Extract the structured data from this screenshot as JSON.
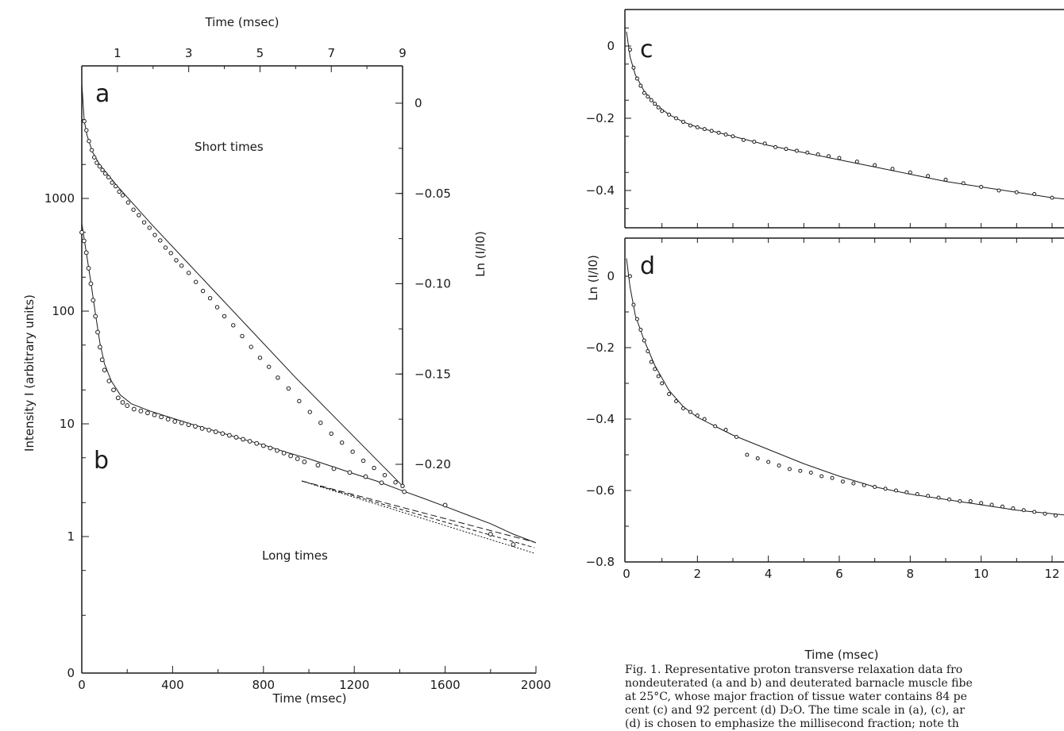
{
  "chart_data": [
    {
      "panel": "a/b",
      "type": "scatter",
      "xlabel_top": "Time (msec)",
      "xlabel_bottom": "Time (msec)",
      "ylabel_left": "Intensity I (arbitrary units)",
      "ylabel_right": "Ln (I/I0)",
      "top_axis": {
        "range": [
          0,
          9
        ],
        "ticks": [
          1,
          3,
          5,
          7,
          9
        ],
        "tick_labels": [
          "1",
          "3",
          "5",
          "7",
          "9"
        ]
      },
      "bottom_axis": {
        "range": [
          0,
          2000
        ],
        "ticks": [
          0,
          400,
          800,
          1200,
          1600,
          2000
        ],
        "tick_labels": [
          "0",
          "400",
          "800",
          "1200",
          "1600",
          "2000"
        ]
      },
      "left_axis": {
        "scale": "log",
        "tick_labels": [
          "0",
          "1",
          "10",
          "100",
          "1000"
        ]
      },
      "right_axis": {
        "range": [
          -0.23,
          0.02
        ],
        "ticks": [
          0,
          -0.05,
          -0.1,
          -0.15,
          -0.2
        ],
        "tick_labels": [
          "0",
          "−0.05",
          "−0.10",
          "−0.15",
          "−0.20"
        ]
      },
      "labels": {
        "a": "a",
        "b": "b",
        "short": "Short times",
        "long": "Long times"
      },
      "series": [
        {
          "panel_label": "a",
          "x_axis": "top",
          "y_axis": "right",
          "points": [
            [
              0.07,
              -0.01
            ],
            [
              0.13,
              -0.015
            ],
            [
              0.2,
              -0.021
            ],
            [
              0.28,
              -0.026
            ],
            [
              0.35,
              -0.03
            ],
            [
              0.42,
              -0.033
            ],
            [
              0.5,
              -0.035
            ],
            [
              0.58,
              -0.037
            ],
            [
              0.66,
              -0.039
            ],
            [
              0.75,
              -0.041
            ],
            [
              0.85,
              -0.044
            ],
            [
              0.95,
              -0.046
            ],
            [
              1.05,
              -0.049
            ],
            [
              1.15,
              -0.051
            ],
            [
              1.3,
              -0.055
            ],
            [
              1.45,
              -0.059
            ],
            [
              1.6,
              -0.062
            ],
            [
              1.75,
              -0.066
            ],
            [
              1.9,
              -0.069
            ],
            [
              2.05,
              -0.073
            ],
            [
              2.2,
              -0.076
            ],
            [
              2.35,
              -0.08
            ],
            [
              2.5,
              -0.083
            ],
            [
              2.65,
              -0.087
            ],
            [
              2.8,
              -0.09
            ],
            [
              3.0,
              -0.094
            ],
            [
              3.2,
              -0.099
            ],
            [
              3.4,
              -0.104
            ],
            [
              3.6,
              -0.108
            ],
            [
              3.8,
              -0.113
            ],
            [
              4.0,
              -0.118
            ],
            [
              4.25,
              -0.123
            ],
            [
              4.5,
              -0.129
            ],
            [
              4.75,
              -0.135
            ],
            [
              5.0,
              -0.141
            ],
            [
              5.25,
              -0.146
            ],
            [
              5.5,
              -0.152
            ],
            [
              5.8,
              -0.158
            ],
            [
              6.1,
              -0.165
            ],
            [
              6.4,
              -0.171
            ],
            [
              6.7,
              -0.177
            ],
            [
              7.0,
              -0.183
            ],
            [
              7.3,
              -0.188
            ],
            [
              7.6,
              -0.193
            ],
            [
              7.9,
              -0.198
            ],
            [
              8.2,
              -0.202
            ],
            [
              8.5,
              -0.206
            ],
            [
              8.8,
              -0.21
            ],
            [
              9.0,
              -0.212
            ]
          ],
          "fit": [
            [
              0,
              0.011
            ],
            [
              0.07,
              -0.01
            ],
            [
              0.15,
              -0.018
            ],
            [
              0.3,
              -0.027
            ],
            [
              0.5,
              -0.034
            ],
            [
              0.75,
              -0.04
            ],
            [
              1.0,
              -0.046
            ],
            [
              1.5,
              -0.057
            ],
            [
              2.0,
              -0.068
            ],
            [
              3.0,
              -0.089
            ],
            [
              4.0,
              -0.11
            ],
            [
              5.0,
              -0.131
            ],
            [
              6.0,
              -0.152
            ],
            [
              7.0,
              -0.172
            ],
            [
              8.0,
              -0.192
            ],
            [
              9.0,
              -0.212
            ]
          ]
        },
        {
          "panel_label": "b",
          "x_axis": "bottom",
          "y_axis": "left",
          "points": [
            [
              0,
              500
            ],
            [
              10,
              420
            ],
            [
              20,
              330
            ],
            [
              30,
              240
            ],
            [
              40,
              175
            ],
            [
              50,
              125
            ],
            [
              60,
              90
            ],
            [
              70,
              65
            ],
            [
              80,
              48
            ],
            [
              90,
              37
            ],
            [
              100,
              30
            ],
            [
              120,
              24
            ],
            [
              140,
              20
            ],
            [
              160,
              17
            ],
            [
              180,
              15.5
            ],
            [
              200,
              14.5
            ],
            [
              230,
              13.5
            ],
            [
              260,
              13
            ],
            [
              290,
              12.5
            ],
            [
              320,
              12
            ],
            [
              350,
              11.5
            ],
            [
              380,
              11
            ],
            [
              410,
              10.5
            ],
            [
              440,
              10.2
            ],
            [
              470,
              9.8
            ],
            [
              500,
              9.5
            ],
            [
              530,
              9.1
            ],
            [
              560,
              8.8
            ],
            [
              590,
              8.5
            ],
            [
              620,
              8.2
            ],
            [
              650,
              7.9
            ],
            [
              680,
              7.6
            ],
            [
              710,
              7.3
            ],
            [
              740,
              7.0
            ],
            [
              770,
              6.7
            ],
            [
              800,
              6.4
            ],
            [
              830,
              6.1
            ],
            [
              860,
              5.8
            ],
            [
              890,
              5.5
            ],
            [
              920,
              5.2
            ],
            [
              950,
              4.9
            ],
            [
              980,
              4.6
            ],
            [
              1040,
              4.3
            ],
            [
              1110,
              4.0
            ],
            [
              1180,
              3.7
            ],
            [
              1250,
              3.4
            ],
            [
              1320,
              3.0
            ],
            [
              1420,
              2.5
            ],
            [
              1600,
              1.9
            ],
            [
              1800,
              1.05
            ],
            [
              1900,
              0.85
            ]
          ],
          "fit": [
            [
              0,
              600
            ],
            [
              20,
              330
            ],
            [
              40,
              180
            ],
            [
              60,
              95
            ],
            [
              80,
              52
            ],
            [
              100,
              34
            ],
            [
              130,
              24
            ],
            [
              170,
              18
            ],
            [
              220,
              15
            ],
            [
              300,
              13
            ],
            [
              400,
              11.2
            ],
            [
              500,
              9.7
            ],
            [
              600,
              8.5
            ],
            [
              700,
              7.4
            ],
            [
              800,
              6.5
            ],
            [
              900,
              5.6
            ],
            [
              1000,
              4.9
            ],
            [
              1100,
              4.2
            ],
            [
              1200,
              3.6
            ],
            [
              1300,
              3.1
            ],
            [
              1400,
              2.6
            ],
            [
              1500,
              2.2
            ],
            [
              1600,
              1.85
            ],
            [
              1700,
              1.55
            ],
            [
              1800,
              1.3
            ],
            [
              1900,
              1.05
            ],
            [
              2000,
              0.88
            ]
          ]
        }
      ]
    },
    {
      "panel": "c",
      "type": "scatter",
      "label": "c",
      "ylabel": "Ln (I/I0)",
      "y_ticks": [
        0,
        -0.2,
        -0.4
      ],
      "y_tick_labels": [
        "0",
        "−0.2",
        "−0.4"
      ],
      "ylim": [
        -0.47,
        0.08
      ],
      "xlim": [
        0,
        12.5
      ],
      "points": [
        [
          0.1,
          -0.01
        ],
        [
          0.2,
          -0.06
        ],
        [
          0.3,
          -0.09
        ],
        [
          0.4,
          -0.11
        ],
        [
          0.5,
          -0.13
        ],
        [
          0.6,
          -0.14
        ],
        [
          0.7,
          -0.15
        ],
        [
          0.8,
          -0.16
        ],
        [
          0.9,
          -0.17
        ],
        [
          1.0,
          -0.18
        ],
        [
          1.2,
          -0.19
        ],
        [
          1.4,
          -0.2
        ],
        [
          1.6,
          -0.21
        ],
        [
          1.8,
          -0.22
        ],
        [
          2.0,
          -0.225
        ],
        [
          2.2,
          -0.23
        ],
        [
          2.4,
          -0.235
        ],
        [
          2.6,
          -0.24
        ],
        [
          2.8,
          -0.245
        ],
        [
          3.0,
          -0.25
        ],
        [
          3.3,
          -0.26
        ],
        [
          3.6,
          -0.265
        ],
        [
          3.9,
          -0.27
        ],
        [
          4.2,
          -0.28
        ],
        [
          4.5,
          -0.285
        ],
        [
          4.8,
          -0.29
        ],
        [
          5.1,
          -0.295
        ],
        [
          5.4,
          -0.3
        ],
        [
          5.7,
          -0.305
        ],
        [
          6.0,
          -0.31
        ],
        [
          6.5,
          -0.32
        ],
        [
          7.0,
          -0.33
        ],
        [
          7.5,
          -0.34
        ],
        [
          8.0,
          -0.35
        ],
        [
          8.5,
          -0.36
        ],
        [
          9.0,
          -0.37
        ],
        [
          9.5,
          -0.38
        ],
        [
          10.0,
          -0.39
        ],
        [
          10.5,
          -0.4
        ],
        [
          11.0,
          -0.405
        ],
        [
          11.5,
          -0.41
        ],
        [
          12.0,
          -0.42
        ]
      ],
      "fit": [
        [
          0,
          0.04
        ],
        [
          0.1,
          -0.03
        ],
        [
          0.25,
          -0.08
        ],
        [
          0.5,
          -0.125
        ],
        [
          0.8,
          -0.16
        ],
        [
          1.2,
          -0.19
        ],
        [
          1.6,
          -0.21
        ],
        [
          2.0,
          -0.225
        ],
        [
          3.0,
          -0.25
        ],
        [
          4.0,
          -0.275
        ],
        [
          5.0,
          -0.295
        ],
        [
          6.0,
          -0.315
        ],
        [
          7.0,
          -0.335
        ],
        [
          8.0,
          -0.355
        ],
        [
          9.0,
          -0.375
        ],
        [
          10.0,
          -0.39
        ],
        [
          11.0,
          -0.405
        ],
        [
          12.0,
          -0.42
        ],
        [
          12.5,
          -0.425
        ]
      ]
    },
    {
      "panel": "d",
      "type": "scatter",
      "label": "d",
      "ylabel": "Ln (I/I0)",
      "xlabel": "Time (msec)",
      "x_ticks": [
        0,
        2,
        4,
        6,
        8,
        10,
        12
      ],
      "x_tick_labels": [
        "0",
        "2",
        "4",
        "6",
        "8",
        "10",
        "12"
      ],
      "y_ticks": [
        0,
        -0.2,
        -0.4,
        -0.6,
        -0.8
      ],
      "y_tick_labels": [
        "0",
        "−0.2",
        "−0.4",
        "−0.6",
        "−0.8"
      ],
      "ylim": [
        -0.8,
        0.08
      ],
      "xlim": [
        0,
        12.5
      ],
      "points": [
        [
          0.1,
          0.0
        ],
        [
          0.2,
          -0.08
        ],
        [
          0.3,
          -0.12
        ],
        [
          0.4,
          -0.15
        ],
        [
          0.5,
          -0.18
        ],
        [
          0.6,
          -0.21
        ],
        [
          0.7,
          -0.24
        ],
        [
          0.8,
          -0.26
        ],
        [
          0.9,
          -0.28
        ],
        [
          1.0,
          -0.3
        ],
        [
          1.2,
          -0.33
        ],
        [
          1.4,
          -0.35
        ],
        [
          1.6,
          -0.37
        ],
        [
          1.8,
          -0.38
        ],
        [
          2.0,
          -0.39
        ],
        [
          2.2,
          -0.4
        ],
        [
          2.5,
          -0.42
        ],
        [
          2.8,
          -0.43
        ],
        [
          3.1,
          -0.45
        ],
        [
          3.4,
          -0.5
        ],
        [
          3.7,
          -0.51
        ],
        [
          4.0,
          -0.52
        ],
        [
          4.3,
          -0.53
        ],
        [
          4.6,
          -0.54
        ],
        [
          4.9,
          -0.545
        ],
        [
          5.2,
          -0.55
        ],
        [
          5.5,
          -0.56
        ],
        [
          5.8,
          -0.565
        ],
        [
          6.1,
          -0.575
        ],
        [
          6.4,
          -0.58
        ],
        [
          6.7,
          -0.585
        ],
        [
          7.0,
          -0.59
        ],
        [
          7.3,
          -0.595
        ],
        [
          7.6,
          -0.6
        ],
        [
          7.9,
          -0.605
        ],
        [
          8.2,
          -0.61
        ],
        [
          8.5,
          -0.615
        ],
        [
          8.8,
          -0.62
        ],
        [
          9.1,
          -0.625
        ],
        [
          9.4,
          -0.63
        ],
        [
          9.7,
          -0.63
        ],
        [
          10.0,
          -0.635
        ],
        [
          10.3,
          -0.64
        ],
        [
          10.6,
          -0.645
        ],
        [
          10.9,
          -0.65
        ],
        [
          11.2,
          -0.655
        ],
        [
          11.5,
          -0.66
        ],
        [
          11.8,
          -0.665
        ],
        [
          12.1,
          -0.67
        ]
      ],
      "fit": [
        [
          0,
          0.05
        ],
        [
          0.1,
          -0.03
        ],
        [
          0.25,
          -0.11
        ],
        [
          0.5,
          -0.18
        ],
        [
          0.8,
          -0.25
        ],
        [
          1.2,
          -0.32
        ],
        [
          1.6,
          -0.365
        ],
        [
          2.0,
          -0.395
        ],
        [
          2.5,
          -0.42
        ],
        [
          3.0,
          -0.445
        ],
        [
          4.0,
          -0.485
        ],
        [
          5.0,
          -0.525
        ],
        [
          6.0,
          -0.56
        ],
        [
          7.0,
          -0.59
        ],
        [
          8.0,
          -0.61
        ],
        [
          9.0,
          -0.625
        ],
        [
          10.0,
          -0.64
        ],
        [
          11.0,
          -0.655
        ],
        [
          12.0,
          -0.665
        ],
        [
          12.5,
          -0.67
        ]
      ]
    }
  ],
  "caption": "Fig. 1. Representative proton transverse relaxation data fro\nnondeuterated (a and b) and deuterated barnacle muscle fibe\nat 25°C, whose major fraction of tissue water contains 84 pe\ncent (c) and 92 percent (d) D₂O. The time scale in (a), (c), ar\n(d) is chosen to emphasize the millisecond fraction; note th"
}
